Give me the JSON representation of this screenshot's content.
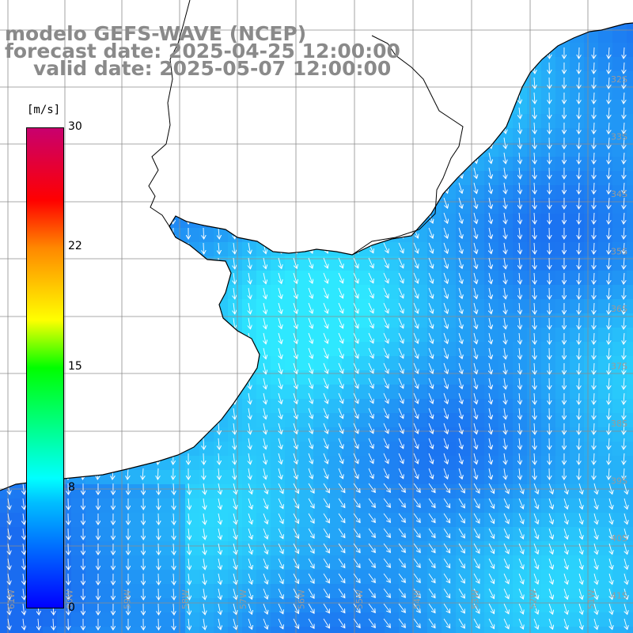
{
  "title": {
    "model": "modelo GEFS-WAVE (NCEP)",
    "forecast": "forecast date: 2025-04-25 12:00:00",
    "valid": "valid date: 2025-05-07 12:00:00"
  },
  "colorbar": {
    "unit": "[m/s]",
    "ticks": [
      "30",
      "22",
      "15",
      "8",
      "0"
    ],
    "tick_values": [
      30,
      22,
      15,
      8,
      0
    ],
    "min": 0,
    "max": 30,
    "colors": [
      "#0000ff",
      "#00bfff",
      "#00ffff",
      "#00ff00",
      "#ffff00",
      "#ff8800",
      "#ff0000",
      "#c8006e"
    ]
  },
  "map": {
    "land_color": "#ffffff",
    "sea_color_low": "#1a6cf0",
    "sea_color_high": "#2ee8ff",
    "grid_color": "#8c8c8c",
    "coast_color": "#000000",
    "arrow_color": "#ffffff",
    "right_axis_labels": [
      "32S",
      "33S",
      "34S",
      "35S",
      "36S",
      "37S",
      "38S",
      "39S",
      "40S",
      "41S"
    ],
    "bottom_axis_labels": [
      "61W",
      "60W",
      "59W",
      "58W",
      "57W",
      "56W",
      "55W",
      "54W",
      "53W",
      "52W",
      "51W"
    ]
  }
}
